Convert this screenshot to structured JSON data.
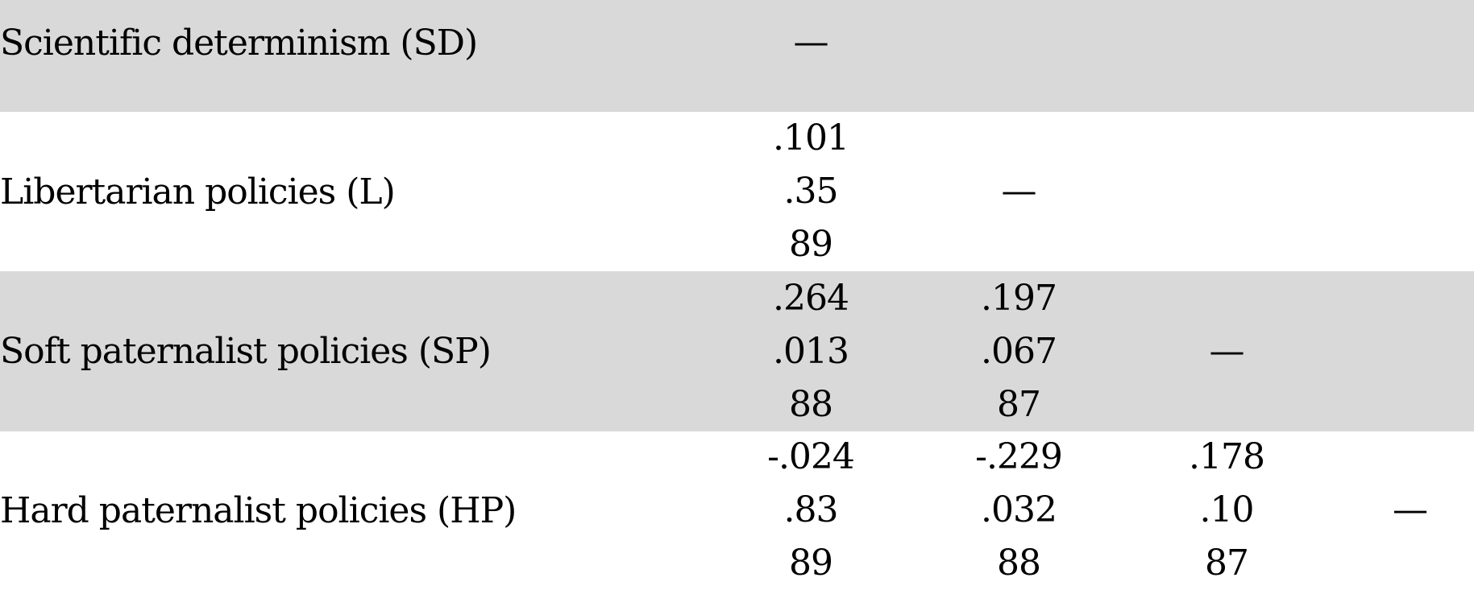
{
  "rows": [
    {
      "label": "Scientific determinism (SD)",
      "diag": "—"
    },
    {
      "label": "Libertarian policies (L)",
      "c1": [
        ".101",
        ".35",
        "89"
      ],
      "diag": "—"
    },
    {
      "label": "Soft paternalist policies (SP)",
      "c1": [
        ".264",
        ".013",
        "88"
      ],
      "c2": [
        ".197",
        ".067",
        "87"
      ],
      "diag": "—"
    },
    {
      "label": "Hard paternalist policies (HP)",
      "c1": [
        "-.024",
        ".83",
        "89"
      ],
      "c2": [
        "-.229",
        ".032",
        "88"
      ],
      "c3": [
        ".178",
        ".10",
        "87"
      ],
      "diag": "—"
    }
  ],
  "colors": {
    "shaded_row": "#d9d9d9",
    "plain_row": "#ffffff",
    "text": "#000000"
  }
}
